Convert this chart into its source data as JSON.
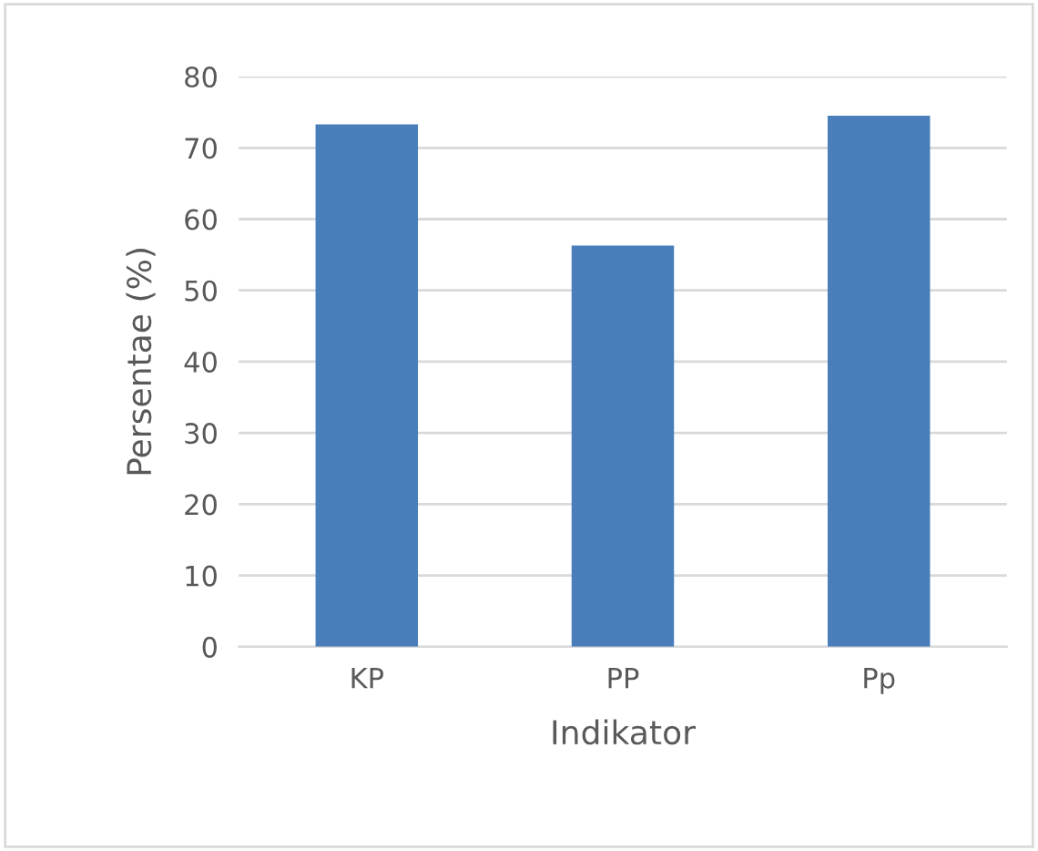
{
  "chart_data": {
    "type": "bar",
    "xlabel": "Indikator",
    "ylabel": "Persentae (%)",
    "categories": [
      "KP",
      "PP",
      "Pp"
    ],
    "values": [
      73.3,
      56.3,
      74.5
    ],
    "color": "#4a7ebb",
    "ylim": [
      0,
      80
    ],
    "yticks": [
      0,
      10,
      20,
      30,
      40,
      50,
      60,
      70,
      80
    ],
    "grid": "y"
  }
}
